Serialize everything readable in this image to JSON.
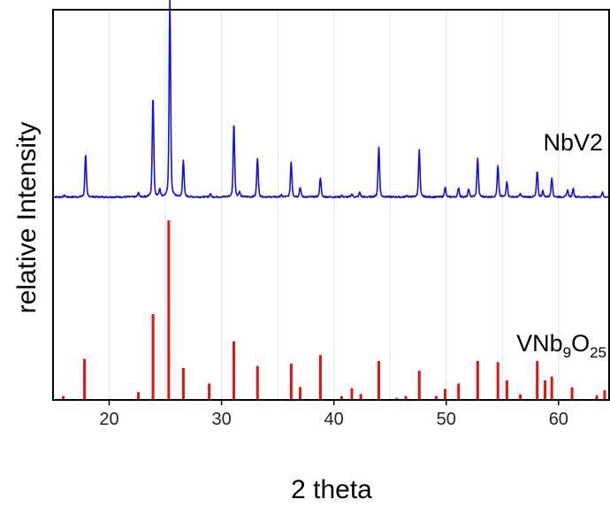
{
  "chart_data": {
    "type": "line",
    "title": "",
    "xlabel": "2 theta",
    "ylabel": "relative Intensity",
    "xlim": [
      15,
      64.5
    ],
    "xticks": [
      20,
      30,
      40,
      50,
      60
    ],
    "xtick_labels": [
      "20",
      "30",
      "40",
      "50",
      "60"
    ],
    "grid": true,
    "colors": {
      "pattern": "#1010e8",
      "reference": "#e81010"
    },
    "series": [
      {
        "name": "NbV2",
        "color": "#1010e8",
        "baseline": 0.52,
        "peaks": [
          [
            16.0,
            0.004
          ],
          [
            17.9,
            0.11
          ],
          [
            22.6,
            0.01
          ],
          [
            23.9,
            0.26
          ],
          [
            24.5,
            0.02
          ],
          [
            25.4,
            0.51
          ],
          [
            26.6,
            0.095
          ],
          [
            29.0,
            0.008
          ],
          [
            31.1,
            0.19
          ],
          [
            31.6,
            0.012
          ],
          [
            33.2,
            0.1
          ],
          [
            35.3,
            0.005
          ],
          [
            36.2,
            0.09
          ],
          [
            37.0,
            0.025
          ],
          [
            38.8,
            0.05
          ],
          [
            40.7,
            0.004
          ],
          [
            41.6,
            0.008
          ],
          [
            42.3,
            0.012
          ],
          [
            44.0,
            0.13
          ],
          [
            46.5,
            0.004
          ],
          [
            47.6,
            0.12
          ],
          [
            49.9,
            0.025
          ],
          [
            51.1,
            0.024
          ],
          [
            52.0,
            0.02
          ],
          [
            52.8,
            0.1
          ],
          [
            54.6,
            0.08
          ],
          [
            55.4,
            0.04
          ],
          [
            56.6,
            0.008
          ],
          [
            58.1,
            0.065
          ],
          [
            58.6,
            0.015
          ],
          [
            59.4,
            0.05
          ],
          [
            60.8,
            0.018
          ],
          [
            61.3,
            0.022
          ],
          [
            63.9,
            0.012
          ]
        ]
      },
      {
        "name": "VNb9O25",
        "label_main": "VNb",
        "label_sub1": "9",
        "label_mid": "O",
        "label_sub2": "25",
        "color": "#e81010",
        "sticks": [
          [
            15.9,
            0.01
          ],
          [
            17.8,
            0.105
          ],
          [
            22.6,
            0.02
          ],
          [
            23.9,
            0.22
          ],
          [
            25.3,
            0.46
          ],
          [
            26.6,
            0.082
          ],
          [
            28.9,
            0.042
          ],
          [
            31.1,
            0.15
          ],
          [
            33.2,
            0.087
          ],
          [
            36.2,
            0.093
          ],
          [
            37.0,
            0.033
          ],
          [
            38.8,
            0.115
          ],
          [
            40.7,
            0.01
          ],
          [
            41.6,
            0.03
          ],
          [
            42.4,
            0.015
          ],
          [
            44.0,
            0.1
          ],
          [
            45.6,
            0.005
          ],
          [
            46.4,
            0.01
          ],
          [
            47.6,
            0.075
          ],
          [
            49.1,
            0.01
          ],
          [
            49.9,
            0.028
          ],
          [
            51.1,
            0.042
          ],
          [
            52.8,
            0.1
          ],
          [
            54.6,
            0.097
          ],
          [
            55.4,
            0.05
          ],
          [
            56.6,
            0.014
          ],
          [
            58.1,
            0.1
          ],
          [
            58.8,
            0.05
          ],
          [
            59.4,
            0.06
          ],
          [
            61.2,
            0.032
          ],
          [
            63.4,
            0.012
          ],
          [
            64.1,
            0.025
          ]
        ]
      }
    ]
  }
}
